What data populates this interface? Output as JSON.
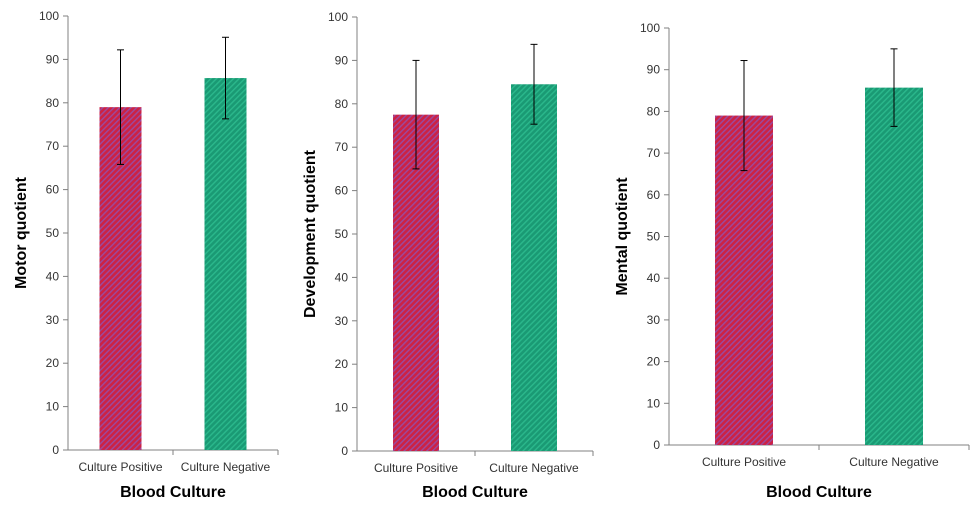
{
  "figure": {
    "colors": {
      "positive_base": "#cc2244",
      "positive_stripe": "#9a4aa0",
      "negative_base": "#1a9a74",
      "negative_stripe": "#2bb88c",
      "axis": "#808080",
      "errorbar": "#000000"
    }
  },
  "chart_data": [
    {
      "type": "bar",
      "categories": [
        "Culture Positive",
        "Culture Negative"
      ],
      "values": [
        79,
        85.7
      ],
      "errors": [
        13.2,
        9.4
      ],
      "xlabel": "Blood Culture",
      "ylabel": "Motor quotient",
      "ylim": [
        0,
        100
      ],
      "yticks": [
        0,
        10,
        20,
        30,
        40,
        50,
        60,
        70,
        80,
        90,
        100
      ],
      "grid": false
    },
    {
      "type": "bar",
      "categories": [
        "Culture Positive",
        "Culture Negative"
      ],
      "values": [
        77.5,
        84.5
      ],
      "errors": [
        12.5,
        9.2
      ],
      "xlabel": "Blood Culture",
      "ylabel": "Development quotient",
      "ylim": [
        0,
        100
      ],
      "yticks": [
        0,
        10,
        20,
        30,
        40,
        50,
        60,
        70,
        80,
        90,
        100
      ],
      "grid": false
    },
    {
      "type": "bar",
      "categories": [
        "Culture Positive",
        "Culture Negative"
      ],
      "values": [
        79,
        85.7
      ],
      "errors": [
        13.2,
        9.3
      ],
      "xlabel": "Blood Culture",
      "ylabel": "Mental quotient",
      "ylim": [
        0,
        100
      ],
      "yticks": [
        0,
        10,
        20,
        30,
        40,
        50,
        60,
        70,
        80,
        90,
        100
      ],
      "grid": false
    }
  ]
}
